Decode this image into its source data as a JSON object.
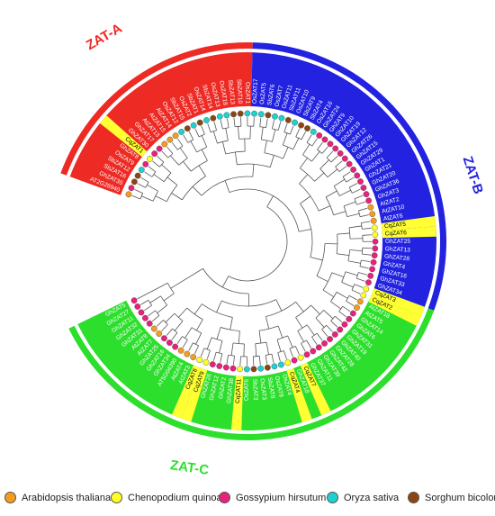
{
  "groups": [
    {
      "name": "ZAT-A",
      "color": "#ee2a24"
    },
    {
      "name": "ZAT-B",
      "color": "#2222e0"
    },
    {
      "name": "ZAT-C",
      "color": "#2cdf2c"
    }
  ],
  "highlight_color": "#ffff33",
  "species": [
    {
      "key": "At",
      "name": "Arabidopsis thaliana",
      "color": "#f39c1f"
    },
    {
      "key": "Cq",
      "name": "Chenopodium quinoa",
      "color": "#ffff22"
    },
    {
      "key": "Gh",
      "name": "Gossypium hirsutum",
      "color": "#e8217a"
    },
    {
      "key": "Os",
      "name": "Oryza sativa",
      "color": "#1fd0d0"
    },
    {
      "key": "Sb",
      "name": "Sorghum bicolor",
      "color": "#8b4513"
    }
  ],
  "leaves": [
    {
      "label": "AT2G26940",
      "group": "ZAT-A",
      "sp": "At"
    },
    {
      "label": "GhZAT35",
      "group": "ZAT-A",
      "sp": "Gh"
    },
    {
      "label": "SbZAT16",
      "group": "ZAT-A",
      "sp": "Sb"
    },
    {
      "label": "SbZAT12",
      "group": "ZAT-A",
      "sp": "Sb"
    },
    {
      "label": "OsZAT9",
      "group": "ZAT-A",
      "sp": "Os"
    },
    {
      "label": "GhZAT8",
      "group": "ZAT-A",
      "sp": "Gh"
    },
    {
      "label": "CqZAT1",
      "group": "ZAT-A",
      "sp": "Cq"
    },
    {
      "label": "GhZAT30",
      "group": "ZAT-A",
      "sp": "Gh"
    },
    {
      "label": "GhZAT17",
      "group": "ZAT-A",
      "sp": "Gh"
    },
    {
      "label": "AtZAT13",
      "group": "ZAT-A",
      "sp": "At"
    },
    {
      "label": "AtZAT15",
      "group": "ZAT-A",
      "sp": "At"
    },
    {
      "label": "AtZAT14",
      "group": "ZAT-A",
      "sp": "At"
    },
    {
      "label": "OsZAT12",
      "group": "ZAT-A",
      "sp": "Os"
    },
    {
      "label": "SbZAT15",
      "group": "ZAT-A",
      "sp": "Sb"
    },
    {
      "label": "OsZAT2",
      "group": "ZAT-A",
      "sp": "Os"
    },
    {
      "label": "SbZAT1",
      "group": "ZAT-A",
      "sp": "Sb"
    },
    {
      "label": "OsZAT14",
      "group": "ZAT-A",
      "sp": "Os"
    },
    {
      "label": "SbZAT14",
      "group": "ZAT-A",
      "sp": "Sb"
    },
    {
      "label": "OsZAT13",
      "group": "ZAT-A",
      "sp": "Os"
    },
    {
      "label": "OsZAT18",
      "group": "ZAT-A",
      "sp": "Os"
    },
    {
      "label": "SbZAT13",
      "group": "ZAT-A",
      "sp": "Sb"
    },
    {
      "label": "SbZAT10",
      "group": "ZAT-A",
      "sp": "Sb"
    },
    {
      "label": "OsZAT1",
      "group": "ZAT-A",
      "sp": "Os"
    },
    {
      "label": "OsZAT17",
      "group": "ZAT-B",
      "sp": "Os"
    },
    {
      "label": "OsZAT5",
      "group": "ZAT-B",
      "sp": "Os"
    },
    {
      "label": "SbZAT6",
      "group": "ZAT-B",
      "sp": "Sb"
    },
    {
      "label": "OsZAT7",
      "group": "ZAT-B",
      "sp": "Os"
    },
    {
      "label": "OsZAT11",
      "group": "ZAT-B",
      "sp": "Os"
    },
    {
      "label": "SbZAT11",
      "group": "ZAT-B",
      "sp": "Sb"
    },
    {
      "label": "OsZAT10",
      "group": "ZAT-B",
      "sp": "Os"
    },
    {
      "label": "SbZAT9",
      "group": "ZAT-B",
      "sp": "Sb"
    },
    {
      "label": "SbZAT4",
      "group": "ZAT-B",
      "sp": "Sb"
    },
    {
      "label": "OsZAT16",
      "group": "ZAT-B",
      "sp": "Os"
    },
    {
      "label": "GhZAT24",
      "group": "ZAT-B",
      "sp": "Gh"
    },
    {
      "label": "GhZAT9",
      "group": "ZAT-B",
      "sp": "Gh"
    },
    {
      "label": "GhZAT10",
      "group": "ZAT-B",
      "sp": "Gh"
    },
    {
      "label": "GhZAT19",
      "group": "ZAT-B",
      "sp": "Gh"
    },
    {
      "label": "GhZAT12",
      "group": "ZAT-B",
      "sp": "Gh"
    },
    {
      "label": "GhZAT26",
      "group": "ZAT-B",
      "sp": "Gh"
    },
    {
      "label": "GhZAT15",
      "group": "ZAT-B",
      "sp": "Gh"
    },
    {
      "label": "GhZAT29",
      "group": "ZAT-B",
      "sp": "Gh"
    },
    {
      "label": "GhZAT1",
      "group": "ZAT-B",
      "sp": "Gh"
    },
    {
      "label": "GhZAT21",
      "group": "ZAT-B",
      "sp": "Gh"
    },
    {
      "label": "GhZAT20",
      "group": "ZAT-B",
      "sp": "Gh"
    },
    {
      "label": "GhZAT36",
      "group": "ZAT-B",
      "sp": "Gh"
    },
    {
      "label": "GhZAT3",
      "group": "ZAT-B",
      "sp": "Gh"
    },
    {
      "label": "AtZAT2",
      "group": "ZAT-B",
      "sp": "At"
    },
    {
      "label": "AtZAT10",
      "group": "ZAT-B",
      "sp": "At"
    },
    {
      "label": "AtZAT6",
      "group": "ZAT-B",
      "sp": "At"
    },
    {
      "label": "CqZAT5",
      "group": "ZAT-B",
      "sp": "Cq"
    },
    {
      "label": "CqZAT6",
      "group": "ZAT-B",
      "sp": "Cq"
    },
    {
      "label": "GhZAT25",
      "group": "ZAT-B",
      "sp": "Gh"
    },
    {
      "label": "GhZAT13",
      "group": "ZAT-B",
      "sp": "Gh"
    },
    {
      "label": "GhZAT28",
      "group": "ZAT-B",
      "sp": "Gh"
    },
    {
      "label": "GhZAT4",
      "group": "ZAT-B",
      "sp": "Gh"
    },
    {
      "label": "GhZAT16",
      "group": "ZAT-B",
      "sp": "Gh"
    },
    {
      "label": "GhZAT33",
      "group": "ZAT-B",
      "sp": "Gh"
    },
    {
      "label": "GhZAT34",
      "group": "ZAT-B",
      "sp": "Gh"
    },
    {
      "label": "CqZAT3",
      "group": "ZAT-C",
      "sp": "Cq"
    },
    {
      "label": "CqZAT2",
      "group": "ZAT-C",
      "sp": "Cq"
    },
    {
      "label": "AtZAT18",
      "group": "ZAT-C",
      "sp": "At"
    },
    {
      "label": "AtZAT5",
      "group": "ZAT-C",
      "sp": "At"
    },
    {
      "label": "GhZAT14",
      "group": "ZAT-C",
      "sp": "Gh"
    },
    {
      "label": "GhZAT6",
      "group": "ZAT-C",
      "sp": "Gh"
    },
    {
      "label": "GhZAT31",
      "group": "ZAT-C",
      "sp": "Gh"
    },
    {
      "label": "GhZAT19",
      "group": "ZAT-C",
      "sp": "Gh"
    },
    {
      "label": "GhZAT40",
      "group": "ZAT-C",
      "sp": "Gh"
    },
    {
      "label": "GhZAT28",
      "group": "ZAT-C",
      "sp": "Gh"
    },
    {
      "label": "GhZAT42",
      "group": "ZAT-C",
      "sp": "Gh"
    },
    {
      "label": "GhZAT39",
      "group": "ZAT-C",
      "sp": "Gh"
    },
    {
      "label": "GhZAT11",
      "group": "ZAT-C",
      "sp": "Gh"
    },
    {
      "label": "GhZAT37",
      "group": "ZAT-C",
      "sp": "Gh"
    },
    {
      "label": "CqZAT7",
      "group": "ZAT-C",
      "sp": "Cq"
    },
    {
      "label": "GhZAT18",
      "group": "ZAT-C",
      "sp": "Gh"
    },
    {
      "label": "CqZAT4",
      "group": "ZAT-C",
      "sp": "Cq"
    },
    {
      "label": "OsZAT4",
      "group": "ZAT-C",
      "sp": "Os"
    },
    {
      "label": "OsZAT8",
      "group": "ZAT-C",
      "sp": "Os"
    },
    {
      "label": "SbZAT8",
      "group": "ZAT-C",
      "sp": "Sb"
    },
    {
      "label": "OsZAT3",
      "group": "ZAT-C",
      "sp": "Os"
    },
    {
      "label": "SbZAT3",
      "group": "ZAT-C",
      "sp": "Sb"
    },
    {
      "label": "OsZAT6",
      "group": "ZAT-C",
      "sp": "Os"
    },
    {
      "label": "CqZAT11",
      "group": "ZAT-C",
      "sp": "Cq"
    },
    {
      "label": "GhZAT38",
      "group": "ZAT-C",
      "sp": "Gh"
    },
    {
      "label": "GhZAT2",
      "group": "ZAT-C",
      "sp": "Gh"
    },
    {
      "label": "GhZAT12",
      "group": "ZAT-C",
      "sp": "Gh"
    },
    {
      "label": "GhZAT26",
      "group": "ZAT-C",
      "sp": "Gh"
    },
    {
      "label": "CqZAT9",
      "group": "ZAT-C",
      "sp": "Cq"
    },
    {
      "label": "CqZAT8",
      "group": "ZAT-C",
      "sp": "Cq"
    },
    {
      "label": "AtZAT3",
      "group": "ZAT-C",
      "sp": "At"
    },
    {
      "label": "AtZAT4",
      "group": "ZAT-C",
      "sp": "At"
    },
    {
      "label": "AT5G04390",
      "group": "ZAT-C",
      "sp": "At"
    },
    {
      "label": "GhZAT34",
      "group": "ZAT-C",
      "sp": "Gh"
    },
    {
      "label": "GhZAT16",
      "group": "ZAT-C",
      "sp": "Gh"
    },
    {
      "label": "GhZAT25",
      "group": "ZAT-C",
      "sp": "Gh"
    },
    {
      "label": "AtZAT7",
      "group": "ZAT-C",
      "sp": "At"
    },
    {
      "label": "AtZAT8",
      "group": "ZAT-C",
      "sp": "At"
    },
    {
      "label": "GhZAT31",
      "group": "ZAT-C",
      "sp": "Gh"
    },
    {
      "label": "GhZAT32",
      "group": "ZAT-C",
      "sp": "Gh"
    },
    {
      "label": "GhZAT11",
      "group": "ZAT-C",
      "sp": "Gh"
    },
    {
      "label": "GhZAT27",
      "group": "ZAT-C",
      "sp": "Gh"
    },
    {
      "label": "GhZAT5",
      "group": "ZAT-C",
      "sp": "Gh"
    }
  ]
}
